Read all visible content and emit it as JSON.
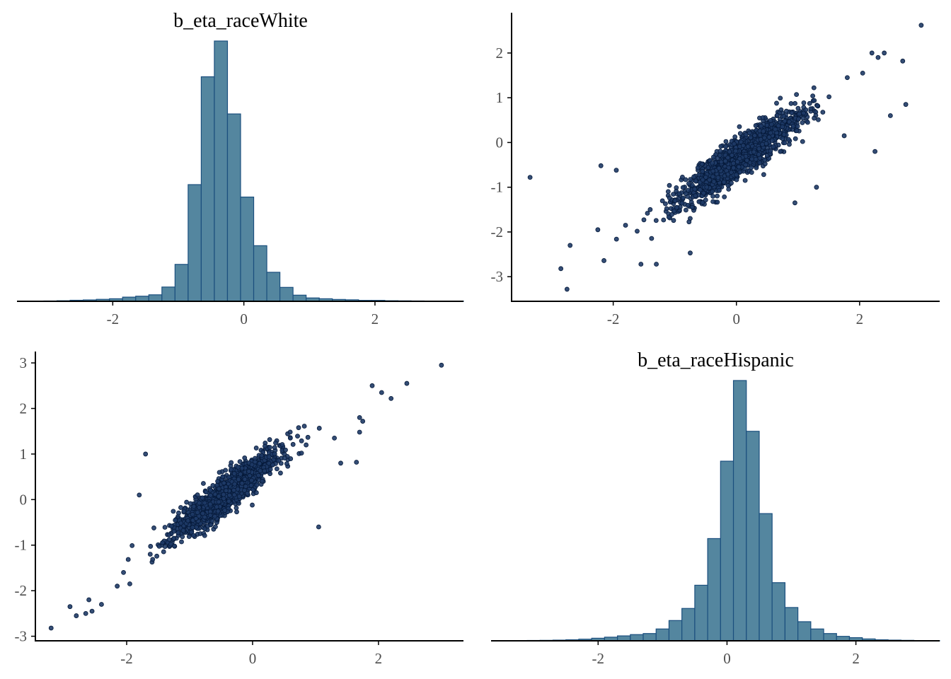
{
  "chart_data": [
    {
      "type": "bar",
      "panel": "top-left",
      "title": "b_eta_raceWhite",
      "xlabel": "",
      "ylabel": "",
      "xlim": [
        -3.45,
        3.35
      ],
      "xticks": [
        -2,
        0,
        2
      ],
      "xtick_labels": [
        "-2",
        "0",
        "2"
      ],
      "y_axis_visible": false,
      "grid": false,
      "bin_width": 0.2,
      "bin_start": -3.45,
      "counts": [
        1,
        2,
        3,
        5,
        9,
        12,
        17,
        22,
        36,
        44,
        56,
        123,
        318,
        1005,
        1934,
        2242,
        1614,
        898,
        479,
        250,
        120,
        53,
        29,
        22,
        16,
        13,
        8,
        8,
        5,
        4,
        3,
        2,
        2,
        2
      ]
    },
    {
      "type": "scatter",
      "panel": "top-right",
      "title": "",
      "xlabel": "",
      "ylabel": "",
      "xlim": [
        -3.65,
        3.3
      ],
      "ylim": [
        -3.55,
        2.9
      ],
      "xticks": [
        -2,
        0,
        2
      ],
      "xtick_labels": [
        "-2",
        "0",
        "2"
      ],
      "yticks": [
        -3,
        -2,
        -1,
        0,
        1,
        2
      ],
      "ytick_labels": [
        "-3",
        "-2",
        "-1",
        "0",
        "1",
        "2"
      ],
      "grid": false,
      "n_points": 1400,
      "center": [
        0.05,
        -0.35
      ],
      "sd_x": 0.5,
      "slope": 0.95,
      "residual_sd": 0.22,
      "outliers": [
        [
          3.0,
          2.62
        ],
        [
          2.7,
          1.82
        ],
        [
          2.75,
          0.85
        ],
        [
          2.5,
          0.6
        ],
        [
          -3.35,
          -0.78
        ],
        [
          -2.75,
          -3.28
        ],
        [
          -2.85,
          -2.82
        ],
        [
          -2.7,
          -2.3
        ],
        [
          -2.2,
          -0.52
        ],
        [
          -1.95,
          -0.62
        ],
        [
          -1.3,
          -2.72
        ],
        [
          -1.55,
          -2.72
        ],
        [
          -0.75,
          -2.47
        ],
        [
          0.95,
          -1.35
        ],
        [
          1.3,
          -1.0
        ],
        [
          2.2,
          2.0
        ],
        [
          2.4,
          2.0
        ],
        [
          2.3,
          1.9
        ],
        [
          1.8,
          1.45
        ],
        [
          2.05,
          1.55
        ],
        [
          2.25,
          -0.2
        ],
        [
          1.75,
          0.15
        ],
        [
          -2.25,
          -1.95
        ],
        [
          -1.8,
          -1.85
        ],
        [
          -1.4,
          -1.5
        ]
      ]
    },
    {
      "type": "scatter",
      "panel": "bottom-left",
      "title": "",
      "xlabel": "",
      "ylabel": "",
      "xlim": [
        -3.45,
        3.35
      ],
      "ylim": [
        -3.1,
        3.25
      ],
      "xticks": [
        -2,
        0,
        2
      ],
      "xtick_labels": [
        "-2",
        "0",
        "2"
      ],
      "yticks": [
        -3,
        -2,
        -1,
        0,
        1,
        2,
        3
      ],
      "ytick_labels": [
        "-3",
        "-2",
        "-1",
        "0",
        "1",
        "2",
        "3"
      ],
      "grid": false,
      "n_points": 1400,
      "center": [
        -0.45,
        0.1
      ],
      "sd_x": 0.45,
      "slope": 1.0,
      "residual_sd": 0.2,
      "outliers": [
        [
          3.0,
          2.95
        ],
        [
          2.45,
          2.55
        ],
        [
          2.2,
          2.22
        ],
        [
          2.05,
          2.35
        ],
        [
          1.9,
          2.5
        ],
        [
          1.05,
          -0.6
        ],
        [
          1.65,
          0.82
        ],
        [
          1.4,
          0.8
        ],
        [
          -1.8,
          0.1
        ],
        [
          -3.2,
          -2.82
        ],
        [
          -2.9,
          -2.35
        ],
        [
          -2.8,
          -2.55
        ],
        [
          -2.65,
          -2.5
        ],
        [
          -2.6,
          -2.2
        ],
        [
          -2.55,
          -2.45
        ],
        [
          -2.4,
          -2.3
        ],
        [
          -2.15,
          -1.9
        ],
        [
          -1.95,
          -1.85
        ],
        [
          -2.05,
          -1.6
        ],
        [
          -1.7,
          1.0
        ],
        [
          1.7,
          1.8
        ],
        [
          1.75,
          1.72
        ],
        [
          1.7,
          1.48
        ],
        [
          1.3,
          1.35
        ],
        [
          0.6,
          1.35
        ]
      ]
    },
    {
      "type": "bar",
      "panel": "bottom-right",
      "title": "b_eta_raceHispanic",
      "xlabel": "",
      "ylabel": "",
      "xlim": [
        -3.65,
        3.3
      ],
      "xticks": [
        -2,
        0,
        2
      ],
      "xtick_labels": [
        "-2",
        "0",
        "2"
      ],
      "y_axis_visible": false,
      "grid": false,
      "bin_width": 0.2,
      "bin_start": -3.5,
      "counts": [
        1,
        2,
        3,
        4,
        6,
        9,
        14,
        22,
        31,
        42,
        53,
        62,
        101,
        173,
        276,
        474,
        872,
        1532,
        2220,
        1787,
        1085,
        496,
        284,
        163,
        101,
        62,
        38,
        27,
        16,
        9,
        6,
        4,
        2,
        1
      ]
    }
  ]
}
